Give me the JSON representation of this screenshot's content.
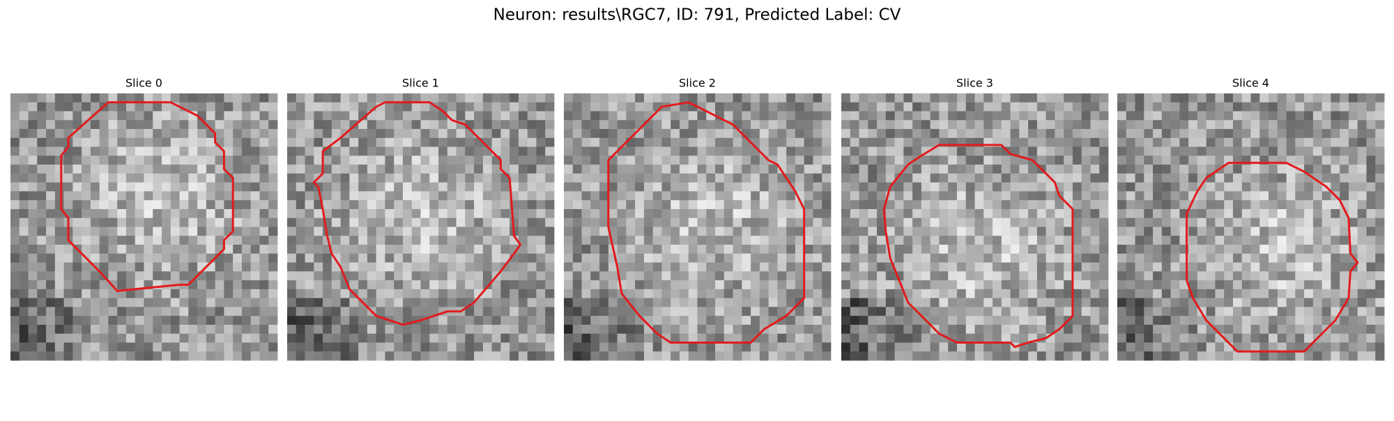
{
  "figure": {
    "title": "Neuron: results\\RGC7, ID: 791, Predicted Label: CV",
    "panels": [
      {
        "title": "Slice 0"
      },
      {
        "title": "Slice 1"
      },
      {
        "title": "Slice 2"
      },
      {
        "title": "Slice 3"
      },
      {
        "title": "Slice 4"
      }
    ]
  }
}
